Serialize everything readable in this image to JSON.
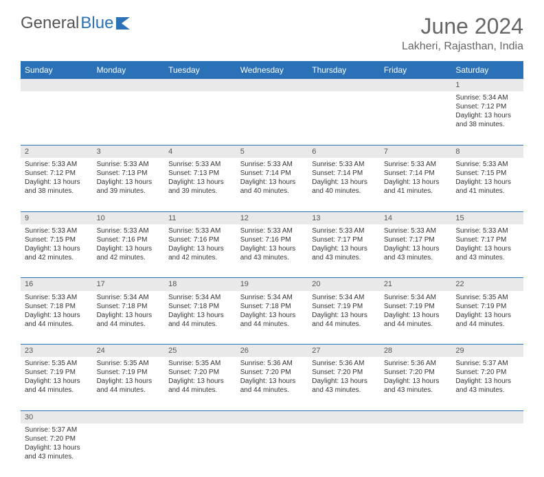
{
  "brand": {
    "part1": "General",
    "part2": "Blue"
  },
  "header": {
    "title": "June 2024",
    "location": "Lakheri, Rajasthan, India"
  },
  "style": {
    "header_bg": "#2a71b8",
    "header_text": "#ffffff",
    "daynum_bg": "#e9e9e9",
    "border_color": "#2a71b8",
    "title_color": "#666666",
    "body_text": "#333333"
  },
  "day_headers": [
    "Sunday",
    "Monday",
    "Tuesday",
    "Wednesday",
    "Thursday",
    "Friday",
    "Saturday"
  ],
  "weeks": [
    [
      null,
      null,
      null,
      null,
      null,
      null,
      {
        "n": "1",
        "sr": "Sunrise: 5:34 AM",
        "ss": "Sunset: 7:12 PM",
        "dl": "Daylight: 13 hours and 38 minutes."
      }
    ],
    [
      {
        "n": "2",
        "sr": "Sunrise: 5:33 AM",
        "ss": "Sunset: 7:12 PM",
        "dl": "Daylight: 13 hours and 38 minutes."
      },
      {
        "n": "3",
        "sr": "Sunrise: 5:33 AM",
        "ss": "Sunset: 7:13 PM",
        "dl": "Daylight: 13 hours and 39 minutes."
      },
      {
        "n": "4",
        "sr": "Sunrise: 5:33 AM",
        "ss": "Sunset: 7:13 PM",
        "dl": "Daylight: 13 hours and 39 minutes."
      },
      {
        "n": "5",
        "sr": "Sunrise: 5:33 AM",
        "ss": "Sunset: 7:14 PM",
        "dl": "Daylight: 13 hours and 40 minutes."
      },
      {
        "n": "6",
        "sr": "Sunrise: 5:33 AM",
        "ss": "Sunset: 7:14 PM",
        "dl": "Daylight: 13 hours and 40 minutes."
      },
      {
        "n": "7",
        "sr": "Sunrise: 5:33 AM",
        "ss": "Sunset: 7:14 PM",
        "dl": "Daylight: 13 hours and 41 minutes."
      },
      {
        "n": "8",
        "sr": "Sunrise: 5:33 AM",
        "ss": "Sunset: 7:15 PM",
        "dl": "Daylight: 13 hours and 41 minutes."
      }
    ],
    [
      {
        "n": "9",
        "sr": "Sunrise: 5:33 AM",
        "ss": "Sunset: 7:15 PM",
        "dl": "Daylight: 13 hours and 42 minutes."
      },
      {
        "n": "10",
        "sr": "Sunrise: 5:33 AM",
        "ss": "Sunset: 7:16 PM",
        "dl": "Daylight: 13 hours and 42 minutes."
      },
      {
        "n": "11",
        "sr": "Sunrise: 5:33 AM",
        "ss": "Sunset: 7:16 PM",
        "dl": "Daylight: 13 hours and 42 minutes."
      },
      {
        "n": "12",
        "sr": "Sunrise: 5:33 AM",
        "ss": "Sunset: 7:16 PM",
        "dl": "Daylight: 13 hours and 43 minutes."
      },
      {
        "n": "13",
        "sr": "Sunrise: 5:33 AM",
        "ss": "Sunset: 7:17 PM",
        "dl": "Daylight: 13 hours and 43 minutes."
      },
      {
        "n": "14",
        "sr": "Sunrise: 5:33 AM",
        "ss": "Sunset: 7:17 PM",
        "dl": "Daylight: 13 hours and 43 minutes."
      },
      {
        "n": "15",
        "sr": "Sunrise: 5:33 AM",
        "ss": "Sunset: 7:17 PM",
        "dl": "Daylight: 13 hours and 43 minutes."
      }
    ],
    [
      {
        "n": "16",
        "sr": "Sunrise: 5:33 AM",
        "ss": "Sunset: 7:18 PM",
        "dl": "Daylight: 13 hours and 44 minutes."
      },
      {
        "n": "17",
        "sr": "Sunrise: 5:34 AM",
        "ss": "Sunset: 7:18 PM",
        "dl": "Daylight: 13 hours and 44 minutes."
      },
      {
        "n": "18",
        "sr": "Sunrise: 5:34 AM",
        "ss": "Sunset: 7:18 PM",
        "dl": "Daylight: 13 hours and 44 minutes."
      },
      {
        "n": "19",
        "sr": "Sunrise: 5:34 AM",
        "ss": "Sunset: 7:18 PM",
        "dl": "Daylight: 13 hours and 44 minutes."
      },
      {
        "n": "20",
        "sr": "Sunrise: 5:34 AM",
        "ss": "Sunset: 7:19 PM",
        "dl": "Daylight: 13 hours and 44 minutes."
      },
      {
        "n": "21",
        "sr": "Sunrise: 5:34 AM",
        "ss": "Sunset: 7:19 PM",
        "dl": "Daylight: 13 hours and 44 minutes."
      },
      {
        "n": "22",
        "sr": "Sunrise: 5:35 AM",
        "ss": "Sunset: 7:19 PM",
        "dl": "Daylight: 13 hours and 44 minutes."
      }
    ],
    [
      {
        "n": "23",
        "sr": "Sunrise: 5:35 AM",
        "ss": "Sunset: 7:19 PM",
        "dl": "Daylight: 13 hours and 44 minutes."
      },
      {
        "n": "24",
        "sr": "Sunrise: 5:35 AM",
        "ss": "Sunset: 7:19 PM",
        "dl": "Daylight: 13 hours and 44 minutes."
      },
      {
        "n": "25",
        "sr": "Sunrise: 5:35 AM",
        "ss": "Sunset: 7:20 PM",
        "dl": "Daylight: 13 hours and 44 minutes."
      },
      {
        "n": "26",
        "sr": "Sunrise: 5:36 AM",
        "ss": "Sunset: 7:20 PM",
        "dl": "Daylight: 13 hours and 44 minutes."
      },
      {
        "n": "27",
        "sr": "Sunrise: 5:36 AM",
        "ss": "Sunset: 7:20 PM",
        "dl": "Daylight: 13 hours and 43 minutes."
      },
      {
        "n": "28",
        "sr": "Sunrise: 5:36 AM",
        "ss": "Sunset: 7:20 PM",
        "dl": "Daylight: 13 hours and 43 minutes."
      },
      {
        "n": "29",
        "sr": "Sunrise: 5:37 AM",
        "ss": "Sunset: 7:20 PM",
        "dl": "Daylight: 13 hours and 43 minutes."
      }
    ],
    [
      {
        "n": "30",
        "sr": "Sunrise: 5:37 AM",
        "ss": "Sunset: 7:20 PM",
        "dl": "Daylight: 13 hours and 43 minutes."
      },
      null,
      null,
      null,
      null,
      null,
      null
    ]
  ]
}
